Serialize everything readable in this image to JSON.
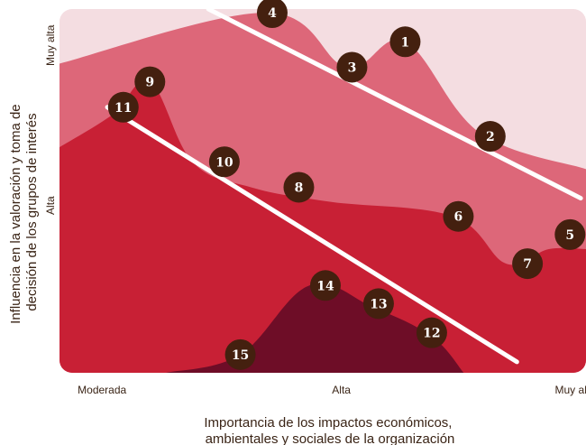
{
  "chart_data": {
    "type": "scatter",
    "title": "",
    "xlabel": [
      "Importancia de los impactos económicos,",
      "ambientales y sociales de la organización"
    ],
    "ylabel": [
      "Influencia en la valoración y toma de",
      "decisión de los grupos de interés"
    ],
    "x_ticks": [
      {
        "label": "Moderada",
        "value": 0.4
      },
      {
        "label": "Alta",
        "value": 4.9
      },
      {
        "label": "Muy alta",
        "value": 9.3
      }
    ],
    "y_ticks": [
      {
        "label": "Muy alta",
        "value": 9.0
      },
      {
        "label": "Alta",
        "value": 4.6
      }
    ],
    "xlim": [
      -0.4,
      9.5
    ],
    "ylim": [
      0.0,
      10.0
    ],
    "colors": {
      "band_lightest": "#f4dde1",
      "band_light": "#dd6779",
      "band_mid": "#c82035",
      "band_dark": "#6e0d27",
      "marker": "#44200f",
      "divider": "#ffffff"
    },
    "bands": [
      {
        "color": "band_light",
        "top": [
          [
            -0.4,
            8.5
          ],
          [
            3.5,
            9.9
          ],
          [
            5.0,
            8.4
          ],
          [
            6.1,
            9.1
          ],
          [
            7.5,
            6.6
          ],
          [
            9.5,
            5.6
          ]
        ]
      },
      {
        "color": "band_mid",
        "top": [
          [
            -0.4,
            6.2
          ],
          [
            0.6,
            7.1
          ],
          [
            1.3,
            8.0
          ],
          [
            2.1,
            5.8
          ],
          [
            3.2,
            5.1
          ],
          [
            4.7,
            4.7
          ],
          [
            7.0,
            4.3
          ],
          [
            8.0,
            3.0
          ],
          [
            8.8,
            3.4
          ],
          [
            9.5,
            3.4
          ]
        ]
      },
      {
        "color": "band_dark",
        "top": [
          [
            1.6,
            0.0
          ],
          [
            3.0,
            0.5
          ],
          [
            4.3,
            2.4
          ],
          [
            5.5,
            1.8
          ],
          [
            6.6,
            1.0
          ],
          [
            7.2,
            0.0
          ]
        ]
      }
    ],
    "dividers": [
      {
        "from": [
          2.4,
          10.0
        ],
        "to": [
          9.4,
          4.8
        ]
      },
      {
        "from": [
          0.5,
          7.3
        ],
        "to": [
          8.2,
          0.3
        ]
      }
    ],
    "points": [
      {
        "label": "1",
        "x": 6.1,
        "y": 9.1
      },
      {
        "label": "2",
        "x": 7.7,
        "y": 6.5
      },
      {
        "label": "3",
        "x": 5.1,
        "y": 8.4
      },
      {
        "label": "4",
        "x": 3.6,
        "y": 9.9
      },
      {
        "label": "5",
        "x": 9.2,
        "y": 3.8
      },
      {
        "label": "6",
        "x": 7.1,
        "y": 4.3
      },
      {
        "label": "7",
        "x": 8.4,
        "y": 3.0
      },
      {
        "label": "8",
        "x": 4.1,
        "y": 5.1
      },
      {
        "label": "9",
        "x": 1.3,
        "y": 8.0
      },
      {
        "label": "10",
        "x": 2.7,
        "y": 5.8
      },
      {
        "label": "11",
        "x": 0.8,
        "y": 7.3
      },
      {
        "label": "12",
        "x": 6.6,
        "y": 1.1
      },
      {
        "label": "13",
        "x": 5.6,
        "y": 1.9
      },
      {
        "label": "14",
        "x": 4.6,
        "y": 2.4
      },
      {
        "label": "15",
        "x": 3.0,
        "y": 0.5
      }
    ]
  }
}
